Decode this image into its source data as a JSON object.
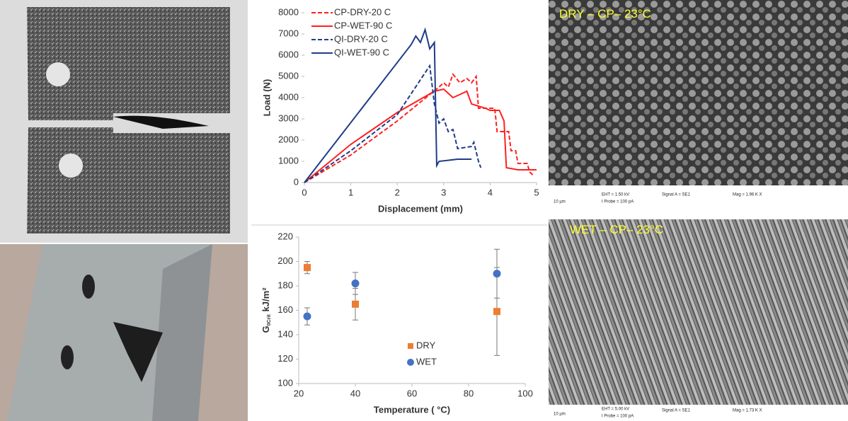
{
  "chart_data": [
    {
      "type": "line",
      "xlabel": "Displacement (mm)",
      "ylabel": "Load (N)",
      "xlim": [
        0,
        5
      ],
      "xticks": [
        0,
        1,
        2,
        3,
        4,
        5
      ],
      "ylim": [
        0,
        8000
      ],
      "yticks": [
        0,
        1000,
        2000,
        3000,
        4000,
        5000,
        6000,
        7000,
        8000
      ],
      "legend": "top-left",
      "series": [
        {
          "name": "CP-DRY-20 C",
          "color": "#ff2020",
          "dashed": true,
          "x": [
            0,
            1,
            2,
            2.9,
            3.0,
            3.1,
            3.2,
            3.35,
            3.5,
            3.6,
            3.7,
            3.75,
            4.1,
            4.15,
            4.4,
            4.45,
            4.55,
            4.6,
            4.8,
            4.85,
            4.95
          ],
          "values": [
            0,
            1300,
            2900,
            4500,
            4700,
            4500,
            5100,
            4700,
            4900,
            4700,
            5000,
            3500,
            3500,
            2400,
            2400,
            1500,
            1500,
            900,
            900,
            500,
            300
          ]
        },
        {
          "name": "CP-WET-90 C",
          "color": "#ff2020",
          "dashed": false,
          "x": [
            0,
            1,
            2,
            2.8,
            3.0,
            3.2,
            3.5,
            3.6,
            3.9,
            4.0,
            4.2,
            4.3,
            4.35,
            4.6,
            4.9,
            5.0
          ],
          "values": [
            0,
            1800,
            3300,
            4300,
            4400,
            4000,
            4300,
            3700,
            3500,
            3400,
            3400,
            2900,
            700,
            600,
            600,
            600
          ]
        },
        {
          "name": "QI-DRY-20 C",
          "color": "#1f3c88",
          "dashed": true,
          "x": [
            0,
            1,
            2,
            2.7,
            2.8,
            2.9,
            3.0,
            3.1,
            3.2,
            3.3,
            3.6,
            3.65,
            3.75,
            3.8
          ],
          "values": [
            0,
            1500,
            3200,
            5500,
            3700,
            2800,
            3000,
            2400,
            2500,
            1600,
            1700,
            1900,
            1000,
            700
          ]
        },
        {
          "name": "QI-WET-90 C",
          "color": "#1f3c88",
          "dashed": false,
          "x": [
            0,
            2.3,
            2.4,
            2.5,
            2.6,
            2.7,
            2.8,
            2.85,
            2.9,
            3.3,
            3.6
          ],
          "values": [
            0,
            6500,
            6900,
            6600,
            7200,
            6300,
            6600,
            800,
            1000,
            1100,
            1100
          ]
        }
      ]
    },
    {
      "type": "scatter",
      "xlabel": "Temperature ( °C)",
      "ylabel": "G",
      "ylabel_sub": "0Crit",
      "ylabel_unit": "kJ/m²",
      "xlim": [
        20,
        100
      ],
      "xticks": [
        20,
        40,
        60,
        80,
        100
      ],
      "ylim": [
        100,
        220
      ],
      "yticks": [
        100,
        120,
        140,
        160,
        180,
        200,
        220
      ],
      "legend": "bottom-center",
      "series": [
        {
          "name": "DRY",
          "color": "#ed7d31",
          "marker": "square",
          "x": [
            23,
            40,
            90
          ],
          "values": [
            195,
            165,
            159
          ],
          "errors": [
            5,
            13,
            36
          ]
        },
        {
          "name": "WET",
          "color": "#4472c4",
          "marker": "circle",
          "x": [
            23,
            40,
            90
          ],
          "values": [
            155,
            182,
            190
          ],
          "errors": [
            7,
            9,
            20
          ]
        }
      ]
    }
  ],
  "images": [
    {
      "label": "DRY – CP– 23°C",
      "info": [
        "EHT = 1.50 kV",
        "I Probe = 100 pA",
        "Signal A = SE1",
        "Mag = 1.96 K X",
        "10 µm"
      ]
    },
    {
      "label": "WET – CP– 23°C",
      "info": [
        "EHT = 5.00 kV",
        "I Probe = 100 pA",
        "Signal A = SE1",
        "Mag = 1.73 K X",
        "10 µm"
      ]
    }
  ]
}
